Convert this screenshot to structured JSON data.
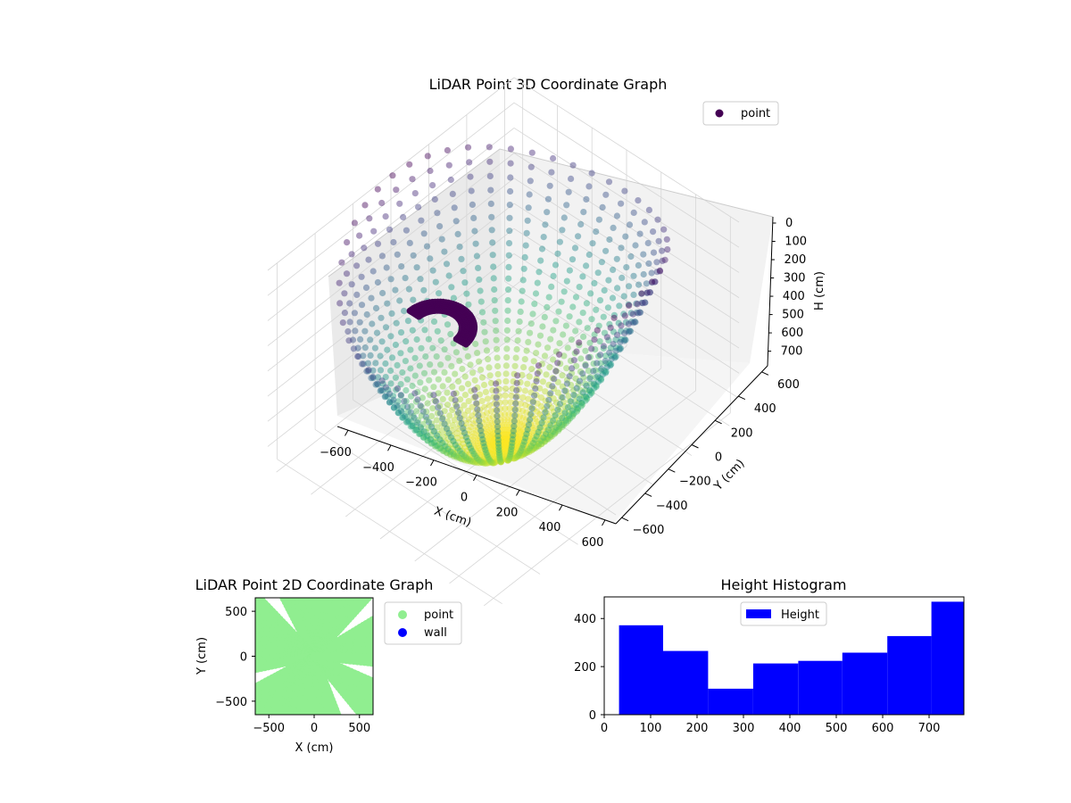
{
  "chart_data": [
    {
      "type": "scatter3d",
      "title": "LiDAR Point 3D Coordinate Graph",
      "xlabel": "X (cm)",
      "ylabel": "Y (cm)",
      "zlabel": "H (cm)",
      "x_ticks": [
        "−600",
        "−400",
        "−200",
        "0",
        "200",
        "400",
        "600"
      ],
      "y_ticks": [
        "−600",
        "−400",
        "−200",
        "0",
        "200",
        "400",
        "600"
      ],
      "z_ticks": [
        "0",
        "100",
        "200",
        "300",
        "400",
        "500",
        "600",
        "700"
      ],
      "xlim": [
        -650,
        650
      ],
      "ylim": [
        -650,
        650
      ],
      "zlim": [
        0,
        780
      ],
      "z_inverted": true,
      "colormap": "viridis",
      "legend": [
        {
          "label": "point",
          "color": "#440154"
        }
      ],
      "legend_position": "upper-right",
      "grid": true
    },
    {
      "type": "scatter",
      "title": "LiDAR Point 2D Coordinate Graph",
      "xlabel": "X (cm)",
      "ylabel": "Y (cm)",
      "x_ticks": [
        "−500",
        "0",
        "500"
      ],
      "y_ticks": [
        "500",
        "0",
        "−500"
      ],
      "xlim": [
        -650,
        650
      ],
      "ylim": [
        -650,
        650
      ],
      "legend": [
        {
          "label": "point",
          "color": "#90ee90"
        },
        {
          "label": "wall",
          "color": "#0000ff"
        }
      ],
      "legend_position": "outside-right"
    },
    {
      "type": "bar",
      "title": "Height Histogram",
      "legend": [
        {
          "label": "Height",
          "color": "#0000ff"
        }
      ],
      "legend_position": "upper-center",
      "x_ticks": [
        "0",
        "100",
        "200",
        "300",
        "400",
        "500",
        "600",
        "700"
      ],
      "y_ticks": [
        "0",
        "200",
        "400"
      ],
      "xlim": [
        0,
        775
      ],
      "ylim": [
        0,
        490
      ],
      "bin_edges": [
        32,
        127,
        224,
        321,
        418,
        513,
        610,
        705,
        775
      ],
      "values": [
        372,
        265,
        108,
        213,
        224,
        258,
        327,
        470
      ],
      "color": "#0000ff"
    }
  ]
}
